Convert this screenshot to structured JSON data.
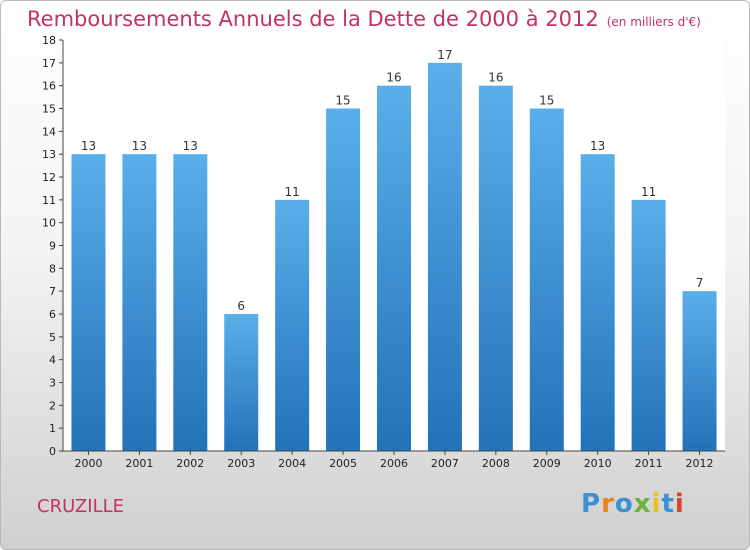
{
  "title": "Remboursements Annuels de la Dette de 2000 à 2012",
  "unit": "(en milliers d'€)",
  "place": "CRUZILLE",
  "brand": "Proxiti",
  "chart_data": {
    "type": "bar",
    "title": "Remboursements Annuels de la Dette de 2000 à 2012",
    "subtitle": "(en milliers d'€)",
    "categories": [
      "2000",
      "2001",
      "2002",
      "2003",
      "2004",
      "2005",
      "2006",
      "2007",
      "2008",
      "2009",
      "2010",
      "2011",
      "2012"
    ],
    "values": [
      13,
      13,
      13,
      6,
      11,
      15,
      16,
      17,
      16,
      15,
      13,
      11,
      7
    ],
    "yticks": [
      0,
      1,
      2,
      3,
      4,
      5,
      6,
      7,
      8,
      9,
      10,
      11,
      12,
      13,
      14,
      15,
      16,
      17,
      18
    ],
    "ylim": [
      0,
      18
    ],
    "grid": false,
    "legend": "none",
    "bar_color": "#3d8fd6"
  }
}
